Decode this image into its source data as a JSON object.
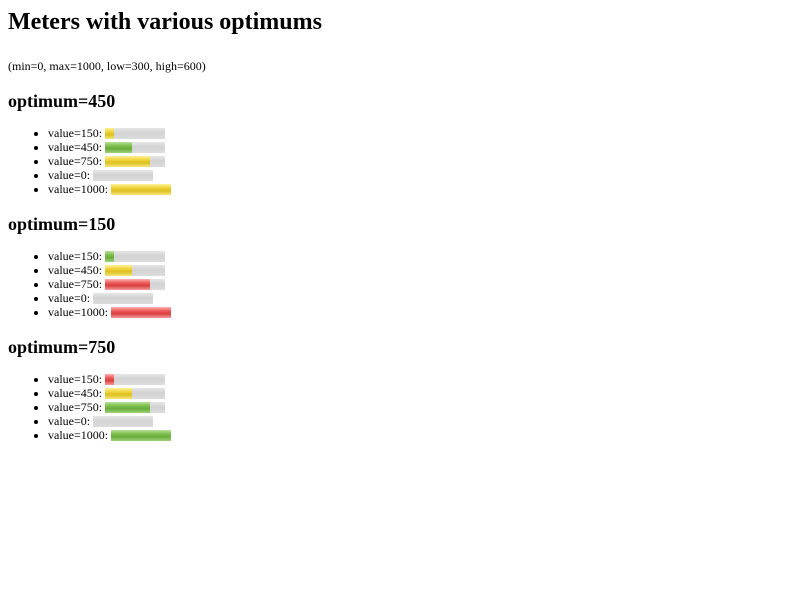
{
  "title": "Meters with various optimums",
  "note": "(min=0, max=1000, low=300, high=600)",
  "meter_range": {
    "min": 0,
    "max": 1000,
    "low": 300,
    "high": 600
  },
  "colors": {
    "good": "#7ec04f",
    "suboptimal": "#f0d43a",
    "bad": "#ee5a5a",
    "track": "#d8d8d8"
  },
  "sections": [
    {
      "heading": "optimum=450",
      "items": [
        {
          "label": "value=150:",
          "value": 150,
          "color": "yellow"
        },
        {
          "label": "value=450:",
          "value": 450,
          "color": "green"
        },
        {
          "label": "value=750:",
          "value": 750,
          "color": "yellow"
        },
        {
          "label": "value=0:",
          "value": 0,
          "color": "green"
        },
        {
          "label": "value=1000:",
          "value": 1000,
          "color": "yellow"
        }
      ]
    },
    {
      "heading": "optimum=150",
      "items": [
        {
          "label": "value=150:",
          "value": 150,
          "color": "green"
        },
        {
          "label": "value=450:",
          "value": 450,
          "color": "yellow"
        },
        {
          "label": "value=750:",
          "value": 750,
          "color": "red"
        },
        {
          "label": "value=0:",
          "value": 0,
          "color": "green"
        },
        {
          "label": "value=1000:",
          "value": 1000,
          "color": "red"
        }
      ]
    },
    {
      "heading": "optimum=750",
      "items": [
        {
          "label": "value=150:",
          "value": 150,
          "color": "red"
        },
        {
          "label": "value=450:",
          "value": 450,
          "color": "yellow"
        },
        {
          "label": "value=750:",
          "value": 750,
          "color": "green"
        },
        {
          "label": "value=0:",
          "value": 0,
          "color": "red"
        },
        {
          "label": "value=1000:",
          "value": 1000,
          "color": "green"
        }
      ]
    }
  ]
}
